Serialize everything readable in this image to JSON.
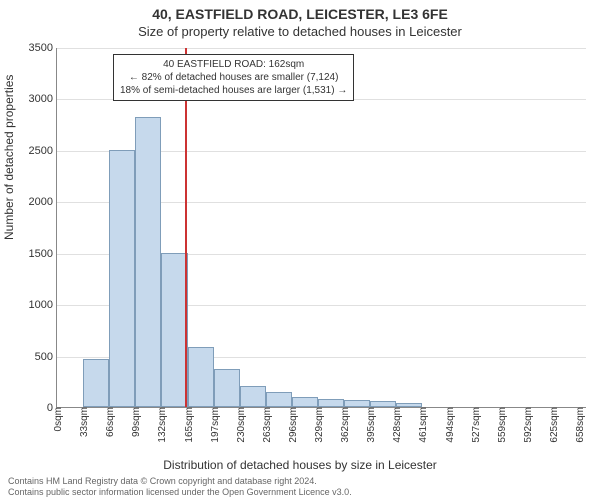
{
  "title_line1": "40, EASTFIELD ROAD, LEICESTER, LE3 6FE",
  "title_line2": "Size of property relative to detached houses in Leicester",
  "ylabel": "Number of detached properties",
  "xlabel": "Distribution of detached houses by size in Leicester",
  "footer_line1": "Contains HM Land Registry data © Crown copyright and database right 2024.",
  "footer_line2": "Contains public sector information licensed under the Open Government Licence v3.0.",
  "chart": {
    "type": "histogram",
    "background_color": "#ffffff",
    "grid_color": "#e0e0e0",
    "axis_color": "#888888",
    "bar_fill": "#c6d9ec",
    "bar_border": "#7f9db9",
    "refline_color": "#cc3333",
    "refline_x": 162,
    "xlim": [
      0,
      670
    ],
    "ylim": [
      0,
      3500
    ],
    "ytick_step": 500,
    "xtick_step": 33,
    "xtick_labels": [
      "0sqm",
      "33sqm",
      "66sqm",
      "99sqm",
      "132sqm",
      "165sqm",
      "197sqm",
      "230sqm",
      "263sqm",
      "296sqm",
      "329sqm",
      "362sqm",
      "395sqm",
      "428sqm",
      "461sqm",
      "494sqm",
      "527sqm",
      "559sqm",
      "592sqm",
      "625sqm",
      "658sqm"
    ],
    "values": [
      0,
      470,
      2500,
      2820,
      1500,
      580,
      370,
      200,
      150,
      100,
      80,
      70,
      60,
      40,
      0,
      0,
      0,
      0,
      0,
      0
    ],
    "title_fontsize": 14,
    "subtitle_fontsize": 13,
    "label_fontsize": 12,
    "tick_fontsize": 11,
    "annot_fontsize": 10
  },
  "annotation": {
    "line1": "40 EASTFIELD ROAD: 162sqm",
    "line2": "← 82% of detached houses are smaller (7,124)",
    "line3": "18% of semi-detached houses are larger (1,531) →"
  }
}
